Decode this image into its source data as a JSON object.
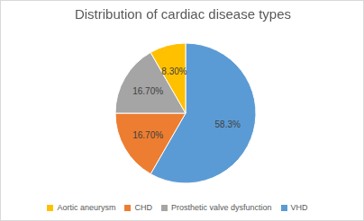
{
  "chart_data": {
    "type": "pie",
    "title": "Distribution of cardiac disease types",
    "categories": [
      "VHD",
      "CHD",
      "Prosthetic valve dysfunction",
      "Aortic aneurysm"
    ],
    "values": [
      58.3,
      16.7,
      16.7,
      8.3
    ],
    "value_labels": [
      "58.3%",
      "16.70%",
      "16.70%",
      "8.30%"
    ],
    "colors": [
      "#5b9bd5",
      "#ed7d31",
      "#a5a5a5",
      "#ffc000"
    ],
    "data_labels": true,
    "legend": "bottom"
  }
}
